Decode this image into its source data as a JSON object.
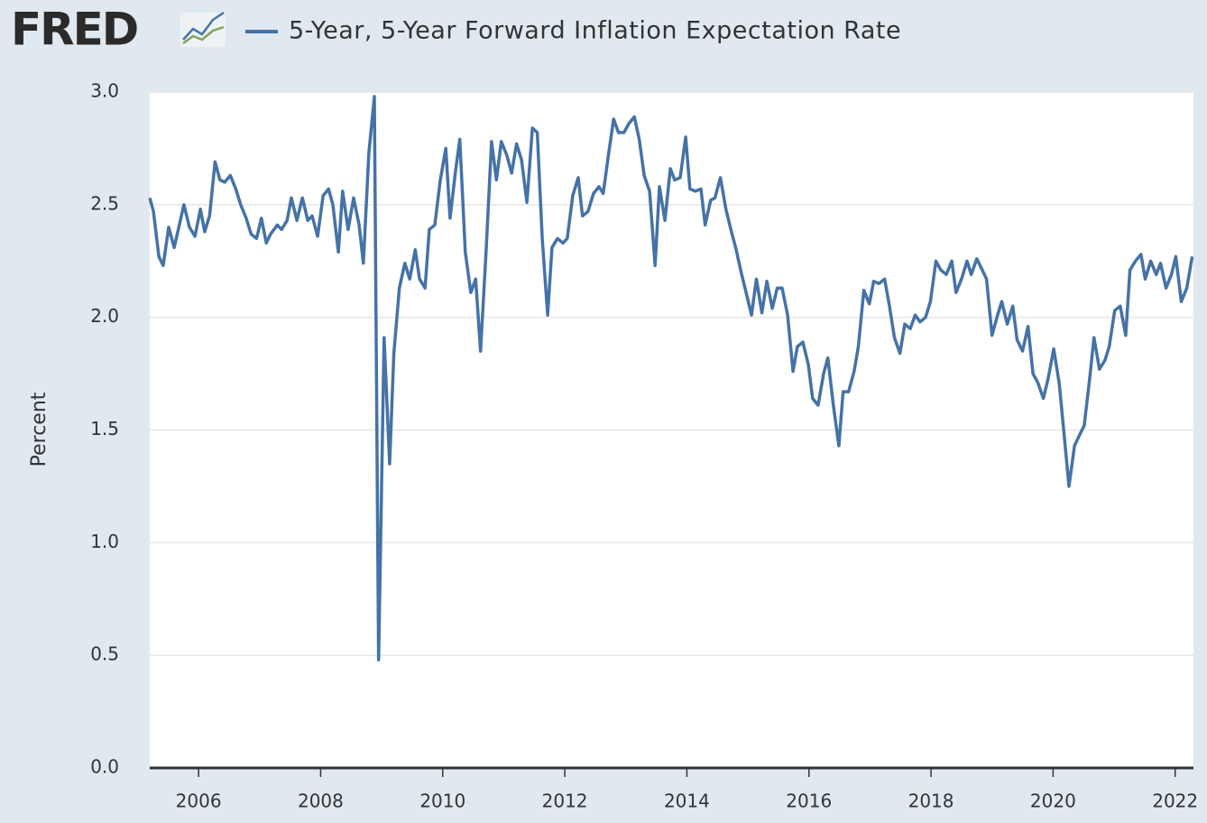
{
  "logo": "FRED",
  "chart_data": {
    "type": "line",
    "title": "5-Year, 5-Year Forward Inflation Expectation Rate",
    "y_label": "Percent",
    "x": [
      2005.2,
      2005.26,
      2005.35,
      2005.42,
      2005.51,
      2005.6,
      2005.76,
      2005.85,
      2005.94,
      2006.03,
      2006.1,
      2006.18,
      2006.27,
      2006.35,
      2006.43,
      2006.52,
      2006.61,
      2006.69,
      2006.78,
      2006.86,
      2006.95,
      2007.03,
      2007.11,
      2007.18,
      2007.29,
      2007.36,
      2007.45,
      2007.52,
      2007.61,
      2007.7,
      2007.79,
      2007.86,
      2007.95,
      2008.04,
      2008.13,
      2008.2,
      2008.29,
      2008.36,
      2008.45,
      2008.54,
      2008.63,
      2008.7,
      2008.79,
      2008.88,
      2008.95,
      2009.04,
      2009.13,
      2009.2,
      2009.29,
      2009.38,
      2009.46,
      2009.55,
      2009.62,
      2009.71,
      2009.78,
      2009.87,
      2009.96,
      2010.05,
      2010.12,
      2010.21,
      2010.28,
      2010.37,
      2010.46,
      2010.54,
      2010.62,
      2010.71,
      2010.8,
      2010.88,
      2010.96,
      2011.05,
      2011.13,
      2011.21,
      2011.29,
      2011.38,
      2011.47,
      2011.55,
      2011.63,
      2011.72,
      2011.79,
      2011.88,
      2011.97,
      2012.04,
      2012.13,
      2012.22,
      2012.29,
      2012.38,
      2012.47,
      2012.56,
      2012.63,
      2012.72,
      2012.8,
      2012.88,
      2012.97,
      2013.05,
      2013.14,
      2013.22,
      2013.3,
      2013.39,
      2013.48,
      2013.55,
      2013.64,
      2013.73,
      2013.8,
      2013.89,
      2013.98,
      2014.05,
      2014.14,
      2014.23,
      2014.3,
      2014.39,
      2014.46,
      2014.55,
      2014.64,
      2014.73,
      2014.8,
      2014.89,
      2014.98,
      2015.06,
      2015.14,
      2015.23,
      2015.31,
      2015.4,
      2015.48,
      2015.56,
      2015.65,
      2015.74,
      2015.81,
      2015.9,
      2015.99,
      2016.06,
      2016.15,
      2016.24,
      2016.31,
      2016.4,
      2016.49,
      2016.56,
      2016.65,
      2016.74,
      2016.81,
      2016.9,
      2016.99,
      2017.06,
      2017.15,
      2017.24,
      2017.32,
      2017.4,
      2017.49,
      2017.57,
      2017.66,
      2017.74,
      2017.82,
      2017.91,
      2017.99,
      2018.08,
      2018.16,
      2018.25,
      2018.34,
      2018.41,
      2018.5,
      2018.59,
      2018.66,
      2018.75,
      2018.84,
      2018.91,
      2019.0,
      2019.09,
      2019.16,
      2019.25,
      2019.34,
      2019.41,
      2019.5,
      2019.59,
      2019.67,
      2019.75,
      2019.84,
      2019.92,
      2020.01,
      2020.1,
      2020.17,
      2020.26,
      2020.35,
      2020.42,
      2020.51,
      2020.6,
      2020.67,
      2020.76,
      2020.85,
      2020.92,
      2021.01,
      2021.1,
      2021.19,
      2021.26,
      2021.35,
      2021.44,
      2021.51,
      2021.6,
      2021.69,
      2021.76,
      2021.85,
      2021.94,
      2022.01,
      2022.1,
      2022.19,
      2022.28
    ],
    "series": [
      {
        "name": "5-Year, 5-Year Forward Inflation Expectation Rate",
        "color": "#4572a7",
        "values": [
          2.53,
          2.47,
          2.27,
          2.23,
          2.4,
          2.31,
          2.5,
          2.4,
          2.36,
          2.48,
          2.38,
          2.45,
          2.69,
          2.61,
          2.6,
          2.63,
          2.57,
          2.5,
          2.44,
          2.37,
          2.35,
          2.44,
          2.33,
          2.37,
          2.41,
          2.39,
          2.43,
          2.53,
          2.43,
          2.53,
          2.43,
          2.45,
          2.36,
          2.54,
          2.57,
          2.5,
          2.29,
          2.56,
          2.39,
          2.53,
          2.41,
          2.24,
          2.73,
          2.98,
          0.48,
          1.91,
          1.35,
          1.84,
          2.13,
          2.24,
          2.17,
          2.3,
          2.17,
          2.13,
          2.39,
          2.41,
          2.61,
          2.75,
          2.44,
          2.65,
          2.79,
          2.29,
          2.11,
          2.17,
          1.85,
          2.29,
          2.78,
          2.61,
          2.78,
          2.72,
          2.64,
          2.77,
          2.7,
          2.51,
          2.84,
          2.82,
          2.35,
          2.01,
          2.31,
          2.35,
          2.33,
          2.35,
          2.54,
          2.62,
          2.45,
          2.47,
          2.55,
          2.58,
          2.55,
          2.73,
          2.88,
          2.82,
          2.82,
          2.86,
          2.89,
          2.79,
          2.63,
          2.56,
          2.23,
          2.58,
          2.43,
          2.66,
          2.61,
          2.62,
          2.8,
          2.57,
          2.56,
          2.57,
          2.41,
          2.52,
          2.53,
          2.62,
          2.48,
          2.38,
          2.31,
          2.2,
          2.1,
          2.01,
          2.17,
          2.02,
          2.16,
          2.04,
          2.13,
          2.13,
          2.01,
          1.76,
          1.87,
          1.89,
          1.79,
          1.64,
          1.61,
          1.75,
          1.82,
          1.61,
          1.43,
          1.67,
          1.67,
          1.76,
          1.87,
          2.12,
          2.06,
          2.16,
          2.15,
          2.17,
          2.05,
          1.91,
          1.84,
          1.97,
          1.95,
          2.01,
          1.98,
          2.0,
          2.07,
          2.25,
          2.21,
          2.19,
          2.25,
          2.11,
          2.17,
          2.25,
          2.19,
          2.26,
          2.21,
          2.17,
          1.92,
          2.01,
          2.07,
          1.97,
          2.05,
          1.9,
          1.85,
          1.96,
          1.75,
          1.71,
          1.64,
          1.73,
          1.86,
          1.71,
          1.51,
          1.25,
          1.43,
          1.47,
          1.52,
          1.73,
          1.91,
          1.77,
          1.81,
          1.87,
          2.03,
          2.05,
          1.92,
          2.21,
          2.25,
          2.28,
          2.17,
          2.25,
          2.19,
          2.24,
          2.13,
          2.19,
          2.27,
          2.07,
          2.13,
          2.27
        ]
      }
    ],
    "xlim": [
      2005.2,
      2022.3
    ],
    "xticks": [
      2006,
      2008,
      2010,
      2012,
      2014,
      2016,
      2018,
      2020,
      2022
    ],
    "ylim": [
      0,
      3
    ],
    "yticks": [
      {
        "value": 0,
        "label": "0.0"
      },
      0.5,
      {
        "value": 1,
        "label": "1.0"
      },
      1.5,
      {
        "value": 2,
        "label": "2.0"
      },
      2.5,
      {
        "value": 3,
        "label": "3.0"
      }
    ],
    "grid": true
  }
}
